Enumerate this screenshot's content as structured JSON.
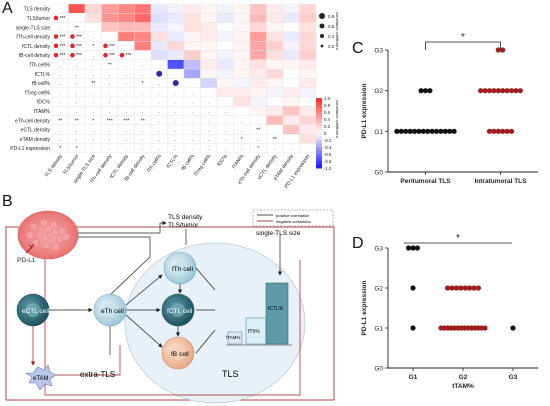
{
  "panels": {
    "a": "A",
    "b": "B",
    "c": "C",
    "d": "D"
  },
  "colors": {
    "positive": "#e0262d",
    "negative": "#2a2aa8",
    "dark_red": "#a01b1b",
    "black": "#111111",
    "cell_light_blue": "#cfe7f0",
    "cell_teal": "#2e6c7a",
    "cell_peach": "#f3c7ad",
    "tls_fill": "#e7f0f6"
  },
  "panel_a": {
    "rows": [
      "TLS density",
      "TLS/tumor",
      "single-TLS size",
      "fTh-cell density",
      "fCTL density",
      "fB-cell density",
      "fTh cell%",
      "fCTL%",
      "fB cell%",
      "fTreg cell%",
      "fDC%",
      "fTAM%",
      "eTh-cell density",
      "eCTL density",
      "eTAM density",
      "PD-L1 expression"
    ],
    "cols": [
      "TLS density",
      "TLS/tumor",
      "single-TLS size",
      "fTh-cell density",
      "fCTL density",
      "fB-cell density",
      "fTh cell%",
      "fCTL%",
      "fB cell%",
      "fTreg cell%",
      "fDC%",
      "fTAM%",
      "eTh-cell density",
      "eCTL density",
      "eTAM density",
      "PD-L1 expression"
    ],
    "scale_ticks": [
      "1.0",
      "0.8",
      "0.6",
      "0.4",
      "0.2",
      "0",
      "-0.2",
      "-0.4",
      "-0.6",
      "-0.8",
      "-1.0"
    ],
    "scale_label": "correlation coefficient",
    "size_ticks": [
      "0.8",
      "0.6",
      "0.4",
      "0.2"
    ],
    "size_label": "correlation coefficient"
  },
  "chart_data": [
    {
      "type": "heatmap",
      "title": "",
      "rows": [
        "TLS density",
        "TLS/tumor",
        "single-TLS size",
        "fTh-cell density",
        "fCTL density",
        "fB-cell density",
        "fTh cell%",
        "fCTL%",
        "fB cell%",
        "fTreg cell%",
        "fDC%",
        "fTAM%",
        "eTh-cell density",
        "eCTL density",
        "eTAM density",
        "PD-L1 expression"
      ],
      "cols": [
        "TLS density",
        "TLS/tumor",
        "single-TLS size",
        "fTh-cell density",
        "fCTL density",
        "fB-cell density",
        "fTh cell%",
        "fCTL%",
        "fB cell%",
        "fTreg cell%",
        "fDC%",
        "fTAM%",
        "eTh-cell density",
        "eCTL density",
        "eTAM density",
        "PD-L1 expression"
      ],
      "upper_values": [
        [
          0,
          0.85,
          0.2,
          0.5,
          0.6,
          0.7,
          -0.1,
          -0.05,
          0.1,
          0.05,
          -0.05,
          0.05,
          0.3,
          0.1,
          -0.05,
          0.2
        ],
        [
          0,
          0,
          0.15,
          0.55,
          0.6,
          0.75,
          -0.15,
          -0.1,
          0.15,
          0.05,
          -0.1,
          0.05,
          0.35,
          0.1,
          -0.1,
          0.25
        ],
        [
          0,
          0,
          0,
          0.3,
          0.35,
          0.35,
          -0.1,
          -0.05,
          0.15,
          0.1,
          0.0,
          0.05,
          0.2,
          0.05,
          0.0,
          0.15
        ],
        [
          0,
          0,
          0,
          0,
          0.65,
          0.6,
          0.15,
          -0.1,
          0.05,
          0.1,
          -0.05,
          0.05,
          0.5,
          0.15,
          -0.1,
          0.2
        ],
        [
          0,
          0,
          0,
          0,
          0,
          0.65,
          -0.1,
          0.2,
          0.05,
          0.05,
          0.0,
          0.05,
          0.45,
          0.25,
          -0.05,
          0.2
        ],
        [
          0,
          0,
          0,
          0,
          0,
          0,
          -0.15,
          -0.1,
          0.25,
          0.05,
          -0.05,
          0.05,
          0.45,
          0.15,
          -0.1,
          0.25
        ],
        [
          0,
          0,
          0,
          0,
          0,
          0,
          0,
          -0.8,
          -0.3,
          0.1,
          -0.1,
          0.05,
          0.15,
          0.05,
          0.05,
          0.1
        ],
        [
          0,
          0,
          0,
          0,
          0,
          0,
          0,
          0,
          -0.4,
          0.05,
          -0.05,
          0.05,
          0.1,
          0.2,
          0.0,
          0.05
        ],
        [
          0,
          0,
          0,
          0,
          0,
          0,
          0,
          0,
          0,
          -0.2,
          0.05,
          -0.05,
          0.1,
          0.05,
          0.0,
          0.1
        ],
        [
          0,
          0,
          0,
          0,
          0,
          0,
          0,
          0,
          0,
          0,
          0.1,
          0.1,
          0.05,
          -0.05,
          0.1,
          -0.05
        ],
        [
          0,
          0,
          0,
          0,
          0,
          0,
          0,
          0,
          0,
          0,
          0,
          0.15,
          -0.05,
          0.0,
          0.05,
          0.0
        ],
        [
          0,
          0,
          0,
          0,
          0,
          0,
          0,
          0,
          0,
          0,
          0,
          0,
          0.05,
          0.1,
          0.3,
          0.1
        ],
        [
          0,
          0,
          0,
          0,
          0,
          0,
          0,
          0,
          0,
          0,
          0,
          0,
          0,
          0.35,
          0.1,
          0.2
        ],
        [
          0,
          0,
          0,
          0,
          0,
          0,
          0,
          0,
          0,
          0,
          0,
          0,
          0,
          0,
          0.3,
          0.1
        ],
        [
          0,
          0,
          0,
          0,
          0,
          0,
          0,
          0,
          0,
          0,
          0,
          0,
          0,
          0,
          0,
          0.15
        ],
        [
          0,
          0,
          0,
          0,
          0,
          0,
          0,
          0,
          0,
          0,
          0,
          0,
          0,
          0,
          0,
          0
        ]
      ],
      "lower_marks": [
        [
          "",
          "",
          "",
          "",
          "",
          "",
          "",
          "",
          "",
          "",
          "",
          "",
          "",
          "",
          "",
          ""
        ],
        [
          "dot***",
          "",
          "",
          "",
          "",
          "",
          "",
          "",
          "",
          "",
          "",
          "",
          "",
          "",
          "",
          ""
        ],
        [
          ".",
          "**",
          "",
          "",
          "",
          "",
          "",
          "",
          "",
          "",
          "",
          "",
          "",
          "",
          "",
          ""
        ],
        [
          "dot***",
          "dot***",
          ".",
          "",
          "",
          "",
          "",
          "",
          "",
          "",
          "",
          "",
          "",
          "",
          "",
          ""
        ],
        [
          "dot***",
          "dot***",
          "*",
          "dot***",
          "",
          "",
          "",
          "",
          "",
          "",
          "",
          "",
          "",
          "",
          "",
          ""
        ],
        [
          "dot***",
          "dot***",
          ".",
          "dot***",
          "dot***",
          "",
          "",
          "",
          "",
          "",
          "",
          "",
          "",
          "",
          "",
          ""
        ],
        [
          ".",
          ".",
          ".",
          "**",
          ".",
          ".",
          "",
          "",
          "",
          "",
          "",
          "",
          "",
          "",
          "",
          ""
        ],
        [
          ".",
          ".",
          ".",
          ".",
          ".",
          ".",
          "bigdot",
          "",
          "",
          "",
          "",
          "",
          "",
          "",
          "",
          ""
        ],
        [
          ".",
          ".",
          "**",
          ".",
          ".",
          "*",
          ".",
          "bigdot",
          "",
          "",
          "",
          "",
          "",
          "",
          "",
          ""
        ],
        [
          ".",
          ".",
          ".",
          ".",
          ".",
          ".",
          ".",
          ".",
          ".",
          "",
          "",
          "",
          "",
          "",
          "",
          ""
        ],
        [
          ".",
          ".",
          ".",
          ".",
          ".",
          ".",
          ".",
          ".",
          ".",
          ".",
          "",
          "",
          "",
          "",
          "",
          ""
        ],
        [
          ".",
          ".",
          ".",
          ".",
          ".",
          ".",
          ".",
          ".",
          ".",
          ".",
          ".",
          "",
          "",
          "",
          "",
          ""
        ],
        [
          "**",
          "**",
          "*",
          "***",
          "***",
          "**",
          ".",
          ".",
          ".",
          ".",
          ".",
          ".",
          "",
          "",
          "",
          ""
        ],
        [
          ".",
          ".",
          ".",
          ".",
          ".",
          ".",
          ".",
          ".",
          ".",
          ".",
          ".",
          ".",
          "**",
          "",
          "",
          ""
        ],
        [
          ".",
          ".",
          ".",
          ".",
          ".",
          ".",
          ".",
          ".",
          ".",
          ".",
          ".",
          "*",
          ".",
          "**",
          "",
          ""
        ],
        [
          "*",
          "*",
          ".",
          ".",
          ".",
          ".",
          ".",
          ".",
          ".",
          ".",
          ".",
          ".",
          "*",
          ".",
          ".",
          ""
        ]
      ],
      "color_range": [
        -1.0,
        1.0
      ]
    },
    {
      "type": "scatter",
      "title": "",
      "xlabel": "",
      "ylabel": "PD-L1 expression",
      "categories": [
        "Peritumoral TLS",
        "Intratumoral TLS"
      ],
      "y_ticks": [
        "G0",
        "G1",
        "G2",
        "G3"
      ],
      "ylim": [
        0,
        3
      ],
      "series": [
        {
          "name": "Peritumoral TLS",
          "category": "Peritumoral TLS",
          "color": "#111111",
          "counts": {
            "G1": 14,
            "G2": 3,
            "G3": 0
          }
        },
        {
          "name": "Intratumoral TLS",
          "category": "Intratumoral TLS",
          "color": "#a01b1b",
          "counts": {
            "G1": 6,
            "G2": 10,
            "G3": 2
          }
        }
      ],
      "significance": "*"
    },
    {
      "type": "scatter",
      "title": "",
      "xlabel": "tTAM%",
      "ylabel": "PD-L1 expression",
      "categories": [
        "G1",
        "G2",
        "G3"
      ],
      "y_ticks": [
        "G0",
        "G1",
        "G2",
        "G3"
      ],
      "ylim": [
        0,
        3
      ],
      "series": [
        {
          "name": "G1",
          "category": "G1",
          "color": "#111111",
          "counts": {
            "G1": 1,
            "G2": 1,
            "G3": 3
          }
        },
        {
          "name": "G2",
          "category": "G2",
          "color": "#a01b1b",
          "counts": {
            "G1": 14,
            "G2": 8,
            "G3": 0
          }
        },
        {
          "name": "G3",
          "category": "G3",
          "color": "#111111",
          "counts": {
            "G1": 1,
            "G2": 0,
            "G3": 0
          }
        }
      ],
      "significance": "*"
    }
  ],
  "panel_b": {
    "pdl1": "PD-L1",
    "tls_density": "TLS density",
    "tls_tumor": "TLS/tumor",
    "single_tls_size": "single-TLS size",
    "legend_positive": "positive correlation",
    "legend_negative": "negative correlation",
    "fth_cell": "fTh cell",
    "fctl_cell": "fCTL cell",
    "fb_cell": "fB cell",
    "eth_cell": "eTh cell",
    "ectl_cell": "eCTL cell",
    "etam": "eTAM",
    "extra_tls": "extra-TLS",
    "tls": "TLS",
    "fth_pct": "fTh%",
    "fctl_pct": "fCTL%",
    "ftam_pct": "fTAM%"
  }
}
